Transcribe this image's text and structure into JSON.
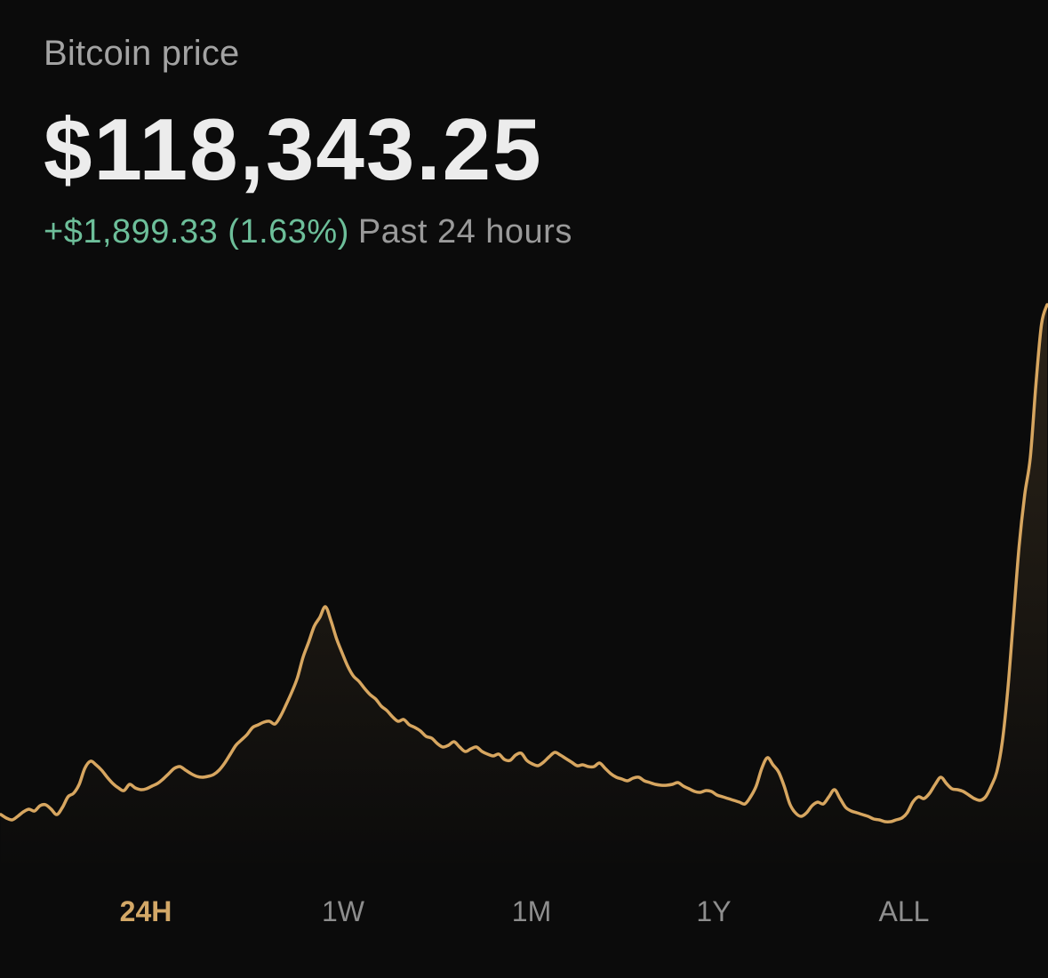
{
  "header": {
    "title": "Bitcoin price",
    "price": "$118,343.25",
    "change": "+$1,899.33 (1.63%)",
    "period": "Past 24 hours"
  },
  "colors": {
    "background": "#0b0b0b",
    "line": "#d7a660",
    "positive": "#6dbf9a",
    "active_range": "#d3a867"
  },
  "ranges": {
    "r24h": "24H",
    "r1w": "1W",
    "r1m": "1M",
    "r1y": "1Y",
    "rall": "ALL"
  },
  "active_range": "24H",
  "chart_data": {
    "type": "area",
    "values": [
      28,
      24,
      22,
      26,
      31,
      34,
      32,
      38,
      39,
      34,
      28,
      36,
      48,
      52,
      62,
      80,
      88,
      84,
      78,
      70,
      63,
      58,
      55,
      62,
      58,
      56,
      57,
      60,
      63,
      68,
      74,
      80,
      82,
      78,
      74,
      71,
      70,
      71,
      73,
      78,
      86,
      96,
      106,
      112,
      118,
      126,
      129,
      132,
      133,
      130,
      139,
      152,
      166,
      182,
      205,
      222,
      240,
      250,
      262,
      246,
      226,
      210,
      195,
      184,
      178,
      170,
      163,
      158,
      150,
      145,
      138,
      133,
      135,
      129,
      126,
      122,
      116,
      114,
      108,
      104,
      106,
      110,
      104,
      99,
      102,
      104,
      99,
      96,
      94,
      96,
      90,
      89,
      95,
      97,
      89,
      85,
      83,
      87,
      93,
      98,
      95,
      91,
      87,
      83,
      84,
      82,
      82,
      86,
      80,
      74,
      70,
      68,
      66,
      69,
      70,
      66,
      64,
      62,
      61,
      61,
      62,
      64,
      60,
      57,
      54,
      53,
      55,
      54,
      50,
      48,
      46,
      44,
      42,
      40,
      48,
      60,
      80,
      92,
      84,
      76,
      60,
      40,
      30,
      26,
      30,
      38,
      42,
      40,
      48,
      56,
      46,
      36,
      32,
      30,
      28,
      26,
      23,
      22,
      20,
      20,
      22,
      24,
      30,
      42,
      48,
      46,
      52,
      62,
      70,
      63,
      57,
      56,
      54,
      50,
      46,
      44,
      48,
      60,
      76,
      110,
      170,
      250,
      330,
      388,
      430,
      512,
      580,
      602
    ],
    "ylim": [
      0,
      620
    ],
    "grid": false
  }
}
